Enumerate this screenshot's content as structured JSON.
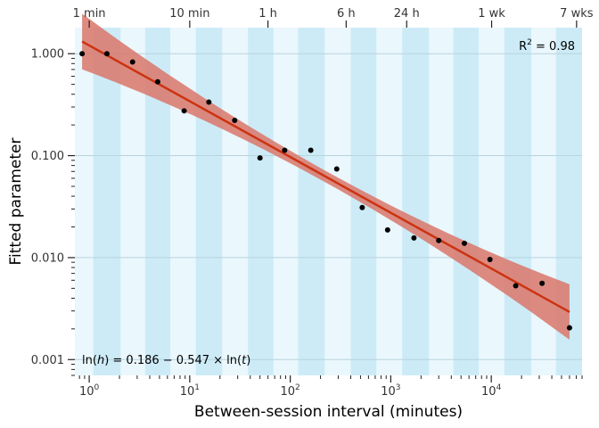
{
  "chart_data": {
    "type": "scatter",
    "title": "",
    "xlabel": "Between-session interval (minutes)",
    "ylabel": "Fitted parameter",
    "x_scale": "log",
    "y_scale": "log",
    "xlim": [
      0.72,
      80000
    ],
    "ylim": [
      0.0007,
      1.8
    ],
    "grid": false,
    "bottom_ticks": [
      {
        "value": 1,
        "mantissa": "10",
        "exp": "0"
      },
      {
        "value": 10,
        "mantissa": "10",
        "exp": "1"
      },
      {
        "value": 100,
        "mantissa": "10",
        "exp": "2"
      },
      {
        "value": 1000,
        "mantissa": "10",
        "exp": "3"
      },
      {
        "value": 10000,
        "mantissa": "10",
        "exp": "4"
      }
    ],
    "top_ticks": [
      {
        "value": 1,
        "label": "1 min"
      },
      {
        "value": 10,
        "label": "10 min"
      },
      {
        "value": 60,
        "label": "1 h"
      },
      {
        "value": 360,
        "label": "6 h"
      },
      {
        "value": 1440,
        "label": "24 h"
      },
      {
        "value": 10080,
        "label": "1 wk"
      },
      {
        "value": 70560,
        "label": "7 wks"
      }
    ],
    "y_ticks": [
      {
        "value": 1,
        "label": "1.000"
      },
      {
        "value": 0.1,
        "label": "0.100"
      },
      {
        "value": 0.01,
        "label": "0.010"
      },
      {
        "value": 0.001,
        "label": "0.001"
      }
    ],
    "bands": [
      {
        "from": 1.1,
        "to": 2.05
      },
      {
        "from": 3.6,
        "to": 6.4
      },
      {
        "from": 11.5,
        "to": 21
      },
      {
        "from": 38,
        "to": 68
      },
      {
        "from": 120,
        "to": 220
      },
      {
        "from": 400,
        "to": 720
      },
      {
        "from": 1300,
        "to": 2400
      },
      {
        "from": 4200,
        "to": 7500
      },
      {
        "from": 13500,
        "to": 25000
      },
      {
        "from": 44000,
        "to": 80000
      }
    ],
    "points": [
      {
        "x": 0.85,
        "y": 1.0
      },
      {
        "x": 1.5,
        "y": 1.0
      },
      {
        "x": 2.7,
        "y": 0.83
      },
      {
        "x": 4.8,
        "y": 0.53
      },
      {
        "x": 8.8,
        "y": 0.275
      },
      {
        "x": 15.5,
        "y": 0.335
      },
      {
        "x": 28,
        "y": 0.222
      },
      {
        "x": 50,
        "y": 0.095
      },
      {
        "x": 88,
        "y": 0.113
      },
      {
        "x": 160,
        "y": 0.113
      },
      {
        "x": 290,
        "y": 0.074
      },
      {
        "x": 520,
        "y": 0.031
      },
      {
        "x": 930,
        "y": 0.0187
      },
      {
        "x": 1700,
        "y": 0.0156
      },
      {
        "x": 3000,
        "y": 0.0147
      },
      {
        "x": 5400,
        "y": 0.0138
      },
      {
        "x": 9700,
        "y": 0.0096
      },
      {
        "x": 17500,
        "y": 0.0053
      },
      {
        "x": 32000,
        "y": 0.0056
      },
      {
        "x": 60000,
        "y": 0.00205
      }
    ],
    "fit": {
      "intercept": 0.186,
      "slope": -0.547,
      "x_range": [
        0.85,
        60000
      ],
      "color": "#cc3311",
      "band_color": "#d9776a"
    },
    "annotations": {
      "r2_base": "R",
      "r2_exp": "2",
      "r2_value": " = 0.98",
      "eq_pre": "ln(",
      "eq_h": "h",
      "eq_mid": ") = 0.186 − 0.547 × ln(",
      "eq_t": "t",
      "eq_post": ")"
    },
    "colors": {
      "band_dark": "#ccebf7",
      "band_light": "#eaf7fd",
      "point": "#000000"
    }
  }
}
